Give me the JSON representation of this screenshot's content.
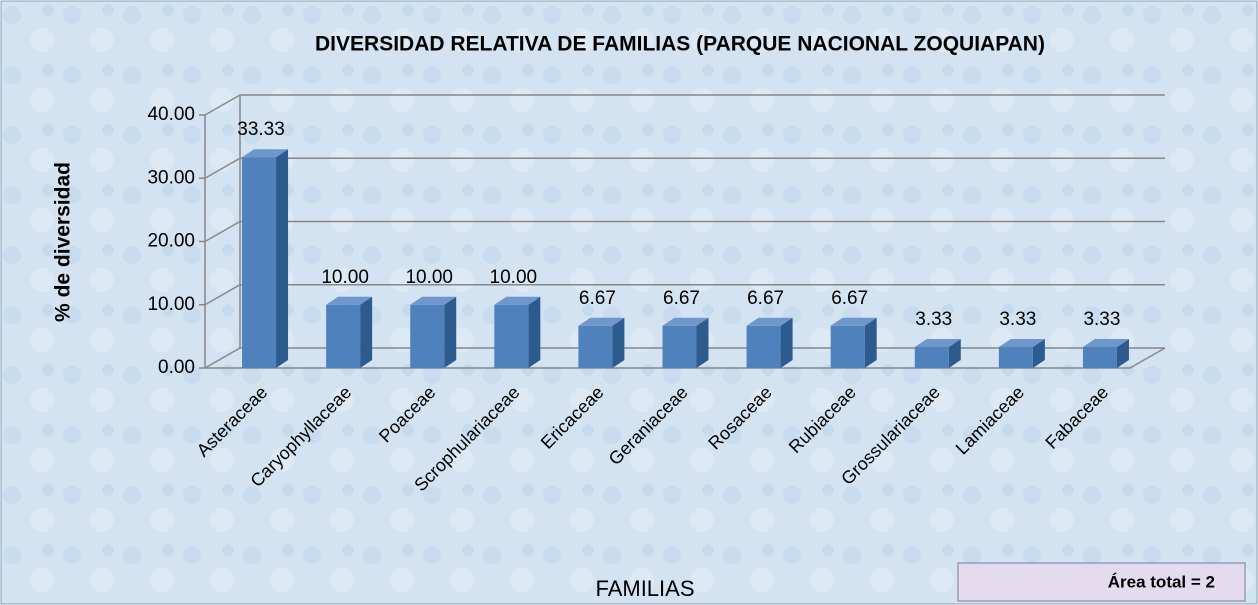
{
  "chart_data": {
    "type": "bar3d",
    "title": "DIVERSIDAD RELATIVA  DE FAMILIAS (PARQUE NACIONAL ZOQUIAPAN)",
    "y_label": "% de  diversidad",
    "x_label": "FAMILIAS",
    "annotation": "Área total = 2",
    "categories": [
      "Asteraceae",
      "Caryophyllaceae",
      "Poaceae",
      "Scrophulariaceae",
      "Ericaceae",
      "Geraniaceae",
      "Rosaceae",
      "Rubiaceae",
      "Grossulariaceae",
      "Lamiaceae",
      "Fabaceae"
    ],
    "values": [
      33.33,
      10,
      10,
      10,
      6.67,
      6.67,
      6.67,
      6.67,
      3.33,
      3.33,
      3.33
    ],
    "value_labels": [
      "33.33",
      "10.00",
      "10.00",
      "10.00",
      "6.67",
      "6.67",
      "6.67",
      "6.67",
      "3.33",
      "3.33",
      "3.33"
    ],
    "color": "#4f81bd",
    "ylim": [
      0,
      40
    ],
    "yticks": [
      {
        "value": 0,
        "label": "0.00"
      },
      {
        "value": 10,
        "label": "10.00"
      },
      {
        "value": 20,
        "label": "20.00"
      },
      {
        "value": 30,
        "label": "30.00"
      },
      {
        "value": 40,
        "label": "40.00"
      }
    ],
    "grid": true
  }
}
